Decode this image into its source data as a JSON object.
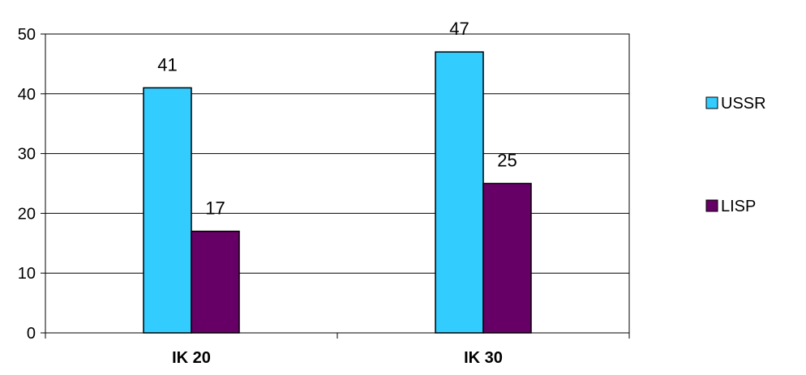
{
  "chart_data": {
    "type": "bar",
    "title": "",
    "xlabel": "",
    "ylabel": "",
    "categories": [
      "IK 20",
      "IK 30"
    ],
    "series": [
      {
        "name": "USSR",
        "values": [
          41,
          47
        ],
        "color": "#33CCFF"
      },
      {
        "name": "LISP",
        "values": [
          17,
          25
        ],
        "color": "#660066"
      }
    ],
    "ylim": [
      0,
      50
    ],
    "yticks": [
      "0",
      "10",
      "20",
      "30",
      "40",
      "50"
    ],
    "grid": true,
    "legend": "right",
    "data_labels": true
  }
}
